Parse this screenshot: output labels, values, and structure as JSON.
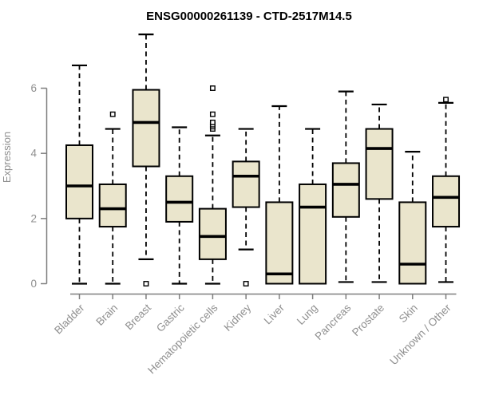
{
  "chart_data": {
    "type": "boxplot",
    "title": "ENSG00000261139 - CTD-2517M14.5",
    "ylabel": "Expression",
    "xlabel": "",
    "ylim": [
      0,
      6
    ],
    "yticks": [
      0,
      2,
      4,
      6
    ],
    "grid": false,
    "legend": "none",
    "colors": {
      "box_fill": "#EAE5CC",
      "box_stroke": "#000000",
      "median": "#000000",
      "whisker": "#000000",
      "outlier_fill": "#ffffff",
      "outlier_stroke": "#000000",
      "axis_line": "#7e7e7e",
      "tick_label": "#8f8f8f",
      "title": "#000000"
    },
    "categories": [
      "Bladder",
      "Brain",
      "Breast",
      "Gastric",
      "Hematopoietic cells",
      "Kidney",
      "Liver",
      "Lung",
      "Pancreas",
      "Prostate",
      "Skin",
      "Unknown / Other"
    ],
    "boxes": [
      {
        "category": "Bladder",
        "low": 0,
        "q1": 2.0,
        "median": 3.0,
        "q3": 4.25,
        "high": 6.7,
        "outliers": []
      },
      {
        "category": "Brain",
        "low": 0,
        "q1": 1.75,
        "median": 2.3,
        "q3": 3.05,
        "high": 4.75,
        "outliers": [
          5.2
        ]
      },
      {
        "category": "Breast",
        "low": 0.75,
        "q1": 3.6,
        "median": 4.95,
        "q3": 5.95,
        "high": 7.65,
        "outliers": [
          0
        ]
      },
      {
        "category": "Gastric",
        "low": 0,
        "q1": 1.9,
        "median": 2.5,
        "q3": 3.3,
        "high": 4.8,
        "outliers": []
      },
      {
        "category": "Hematopoietic cells",
        "low": 0,
        "q1": 0.75,
        "median": 1.45,
        "q3": 2.3,
        "high": 4.55,
        "outliers": [
          4.75,
          4.82,
          4.88,
          4.95,
          5.2,
          6.0
        ]
      },
      {
        "category": "Kidney",
        "low": 1.05,
        "q1": 2.35,
        "median": 3.3,
        "q3": 3.75,
        "high": 4.75,
        "outliers": [
          0
        ]
      },
      {
        "category": "Liver",
        "low": 0,
        "q1": 0,
        "median": 0.3,
        "q3": 2.5,
        "high": 5.45,
        "outliers": []
      },
      {
        "category": "Lung",
        "low": 0,
        "q1": 0,
        "median": 2.35,
        "q3": 3.05,
        "high": 4.75,
        "outliers": []
      },
      {
        "category": "Pancreas",
        "low": 0.05,
        "q1": 2.05,
        "median": 3.05,
        "q3": 3.7,
        "high": 5.9,
        "outliers": []
      },
      {
        "category": "Prostate",
        "low": 0.05,
        "q1": 2.6,
        "median": 4.15,
        "q3": 4.75,
        "high": 5.5,
        "outliers": []
      },
      {
        "category": "Skin",
        "low": 0,
        "q1": 0,
        "median": 0.6,
        "q3": 2.5,
        "high": 4.05,
        "outliers": []
      },
      {
        "category": "Unknown / Other",
        "low": 0.05,
        "q1": 1.75,
        "median": 2.65,
        "q3": 3.3,
        "high": 5.55,
        "outliers": [
          5.65
        ]
      }
    ]
  }
}
